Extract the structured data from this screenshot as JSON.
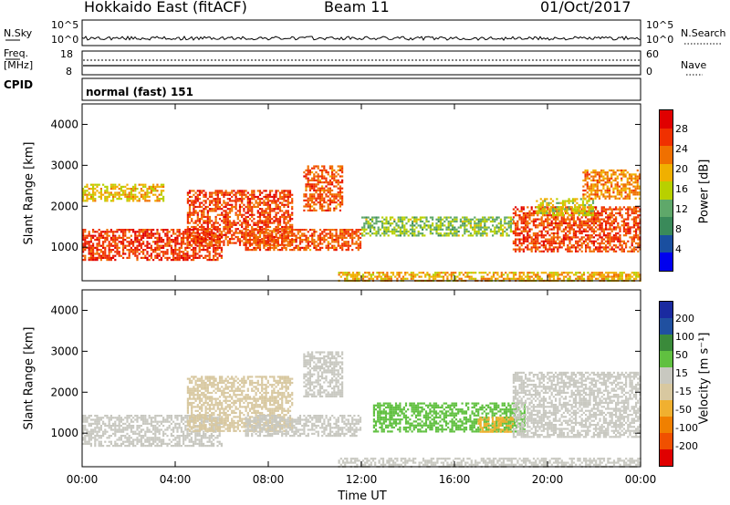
{
  "header": {
    "station": "Hokkaido East (fitACF)",
    "beam": "Beam 11",
    "date": "01/Oct/2017"
  },
  "panels": {
    "nsky_label": "N.Sky",
    "nsky_ticks": [
      "10^5",
      "10^0"
    ],
    "nsearch_label": "N.Search",
    "freq_label": "Freq.",
    "freq_unit": "[MHz]",
    "freq_ticks": [
      "18",
      "8"
    ],
    "nave_ticks": [
      "60",
      "0"
    ],
    "nave_label": "Nave",
    "cpid_label": "CPID",
    "cpid_value": "normal (fast) 151"
  },
  "colors": {
    "power_scale": [
      "#0000ee",
      "#1a4fa0",
      "#3a8a5a",
      "#5fa86a",
      "#b8d000",
      "#f0b000",
      "#f07000",
      "#f03000",
      "#e00000"
    ],
    "velocity_scale": [
      "#e00000",
      "#f05000",
      "#f08000",
      "#f0b030",
      "#d8c8a0",
      "#c8c8c0",
      "#60c040",
      "#3a8a3a",
      "#2050a0",
      "#1a2aa0"
    ]
  },
  "chart_data": [
    {
      "type": "heatmap",
      "name": "power",
      "ylabel": "Slant Range [km]",
      "ylim": [
        180,
        4500
      ],
      "yticks": [
        1000,
        2000,
        3000,
        4000
      ],
      "xlim": [
        0,
        24
      ],
      "colorbar_label": "Power [dB]",
      "colorbar_ticks": [
        4,
        8,
        12,
        16,
        20,
        24,
        28
      ],
      "colorbar_range": [
        0,
        32
      ],
      "regions": [
        {
          "t0": 0.0,
          "t1": 6.0,
          "r0": 700,
          "r1": 1450,
          "dB": 27
        },
        {
          "t0": 4.5,
          "t1": 9.0,
          "r0": 1050,
          "r1": 2400,
          "dB": 26
        },
        {
          "t0": 7.0,
          "t1": 12.0,
          "r0": 950,
          "r1": 1450,
          "dB": 25
        },
        {
          "t0": 9.5,
          "t1": 11.2,
          "r0": 1900,
          "r1": 3000,
          "dB": 25
        },
        {
          "t0": 0.0,
          "t1": 3.5,
          "r0": 2150,
          "r1": 2550,
          "dB": 19
        },
        {
          "t0": 12.0,
          "t1": 18.5,
          "r0": 1300,
          "r1": 1750,
          "dB": 14
        },
        {
          "t0": 18.5,
          "t1": 24.0,
          "r0": 900,
          "r1": 2000,
          "dB": 26
        },
        {
          "t0": 19.5,
          "t1": 22.0,
          "r0": 1800,
          "r1": 2200,
          "dB": 17
        },
        {
          "t0": 21.5,
          "t1": 24.0,
          "r0": 2200,
          "r1": 2900,
          "dB": 22
        },
        {
          "t0": 11.0,
          "t1": 24.0,
          "r0": 200,
          "r1": 400,
          "dB": 20
        }
      ]
    },
    {
      "type": "heatmap",
      "name": "velocity",
      "ylabel": "Slant Range [km]",
      "ylim": [
        180,
        4500
      ],
      "yticks": [
        1000,
        2000,
        3000,
        4000
      ],
      "xlim": [
        0,
        24
      ],
      "xticks": [
        "00:00",
        "04:00",
        "08:00",
        "12:00",
        "16:00",
        "20:00",
        "00:00"
      ],
      "xlabel": "Time UT",
      "colorbar_label": "Velocity [m s⁻¹]",
      "colorbar_ticks": [
        "200",
        "100",
        "50",
        "15",
        "-15",
        "-50",
        "-100",
        "-200"
      ],
      "regions": [
        {
          "t0": 0.0,
          "t1": 6.0,
          "r0": 700,
          "r1": 1450,
          "v": 0
        },
        {
          "t0": 4.5,
          "t1": 9.0,
          "r0": 1050,
          "r1": 2400,
          "v": -30
        },
        {
          "t0": 7.0,
          "t1": 12.0,
          "r0": 950,
          "r1": 1450,
          "v": 0
        },
        {
          "t0": 9.5,
          "t1": 11.2,
          "r0": 1900,
          "r1": 3000,
          "v": 0
        },
        {
          "t0": 12.5,
          "t1": 19.0,
          "r0": 1050,
          "r1": 1750,
          "v": 40
        },
        {
          "t0": 17.0,
          "t1": 18.5,
          "r0": 1050,
          "r1": 1400,
          "v": -60
        },
        {
          "t0": 18.5,
          "t1": 24.0,
          "r0": 900,
          "r1": 2500,
          "v": 0
        },
        {
          "t0": 11.0,
          "t1": 24.0,
          "r0": 200,
          "r1": 400,
          "v": 0
        }
      ]
    }
  ]
}
